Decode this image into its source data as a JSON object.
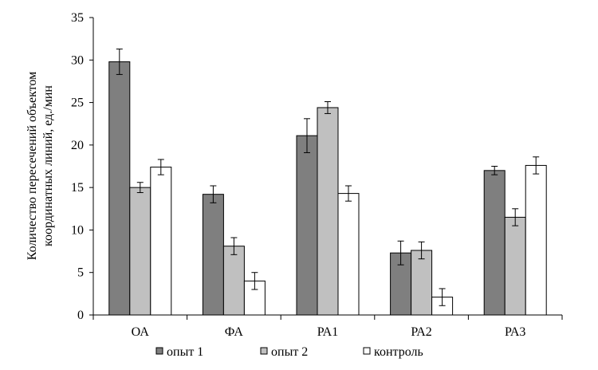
{
  "chart_data": {
    "type": "bar",
    "title": "",
    "xlabel": "",
    "ylabel_lines": [
      "Количество пересечений  объектом",
      "координатных линий, ед./мин"
    ],
    "ylim": [
      0,
      35
    ],
    "ytick_step": 5,
    "yticks": [
      "0",
      "5",
      "10",
      "15",
      "20",
      "25",
      "30",
      "35"
    ],
    "categories": [
      "ОА",
      "ФА",
      "РА1",
      "РА2",
      "РА3"
    ],
    "legend_position": "bottom",
    "series": [
      {
        "name": "опыт 1",
        "color": "#7f7f7f",
        "values": [
          29.8,
          14.2,
          21.1,
          7.3,
          17.0
        ],
        "errors": [
          1.5,
          1.0,
          2.0,
          1.4,
          0.5
        ]
      },
      {
        "name": "опыт 2",
        "color": "#c0c0c0",
        "values": [
          15.0,
          8.1,
          24.4,
          7.6,
          11.5
        ],
        "errors": [
          0.6,
          1.0,
          0.7,
          1.0,
          1.0
        ]
      },
      {
        "name": "контроль",
        "color": "#ffffff",
        "values": [
          17.4,
          4.0,
          14.3,
          2.1,
          17.6
        ],
        "errors": [
          0.9,
          1.0,
          0.9,
          1.0,
          1.0
        ]
      }
    ]
  }
}
